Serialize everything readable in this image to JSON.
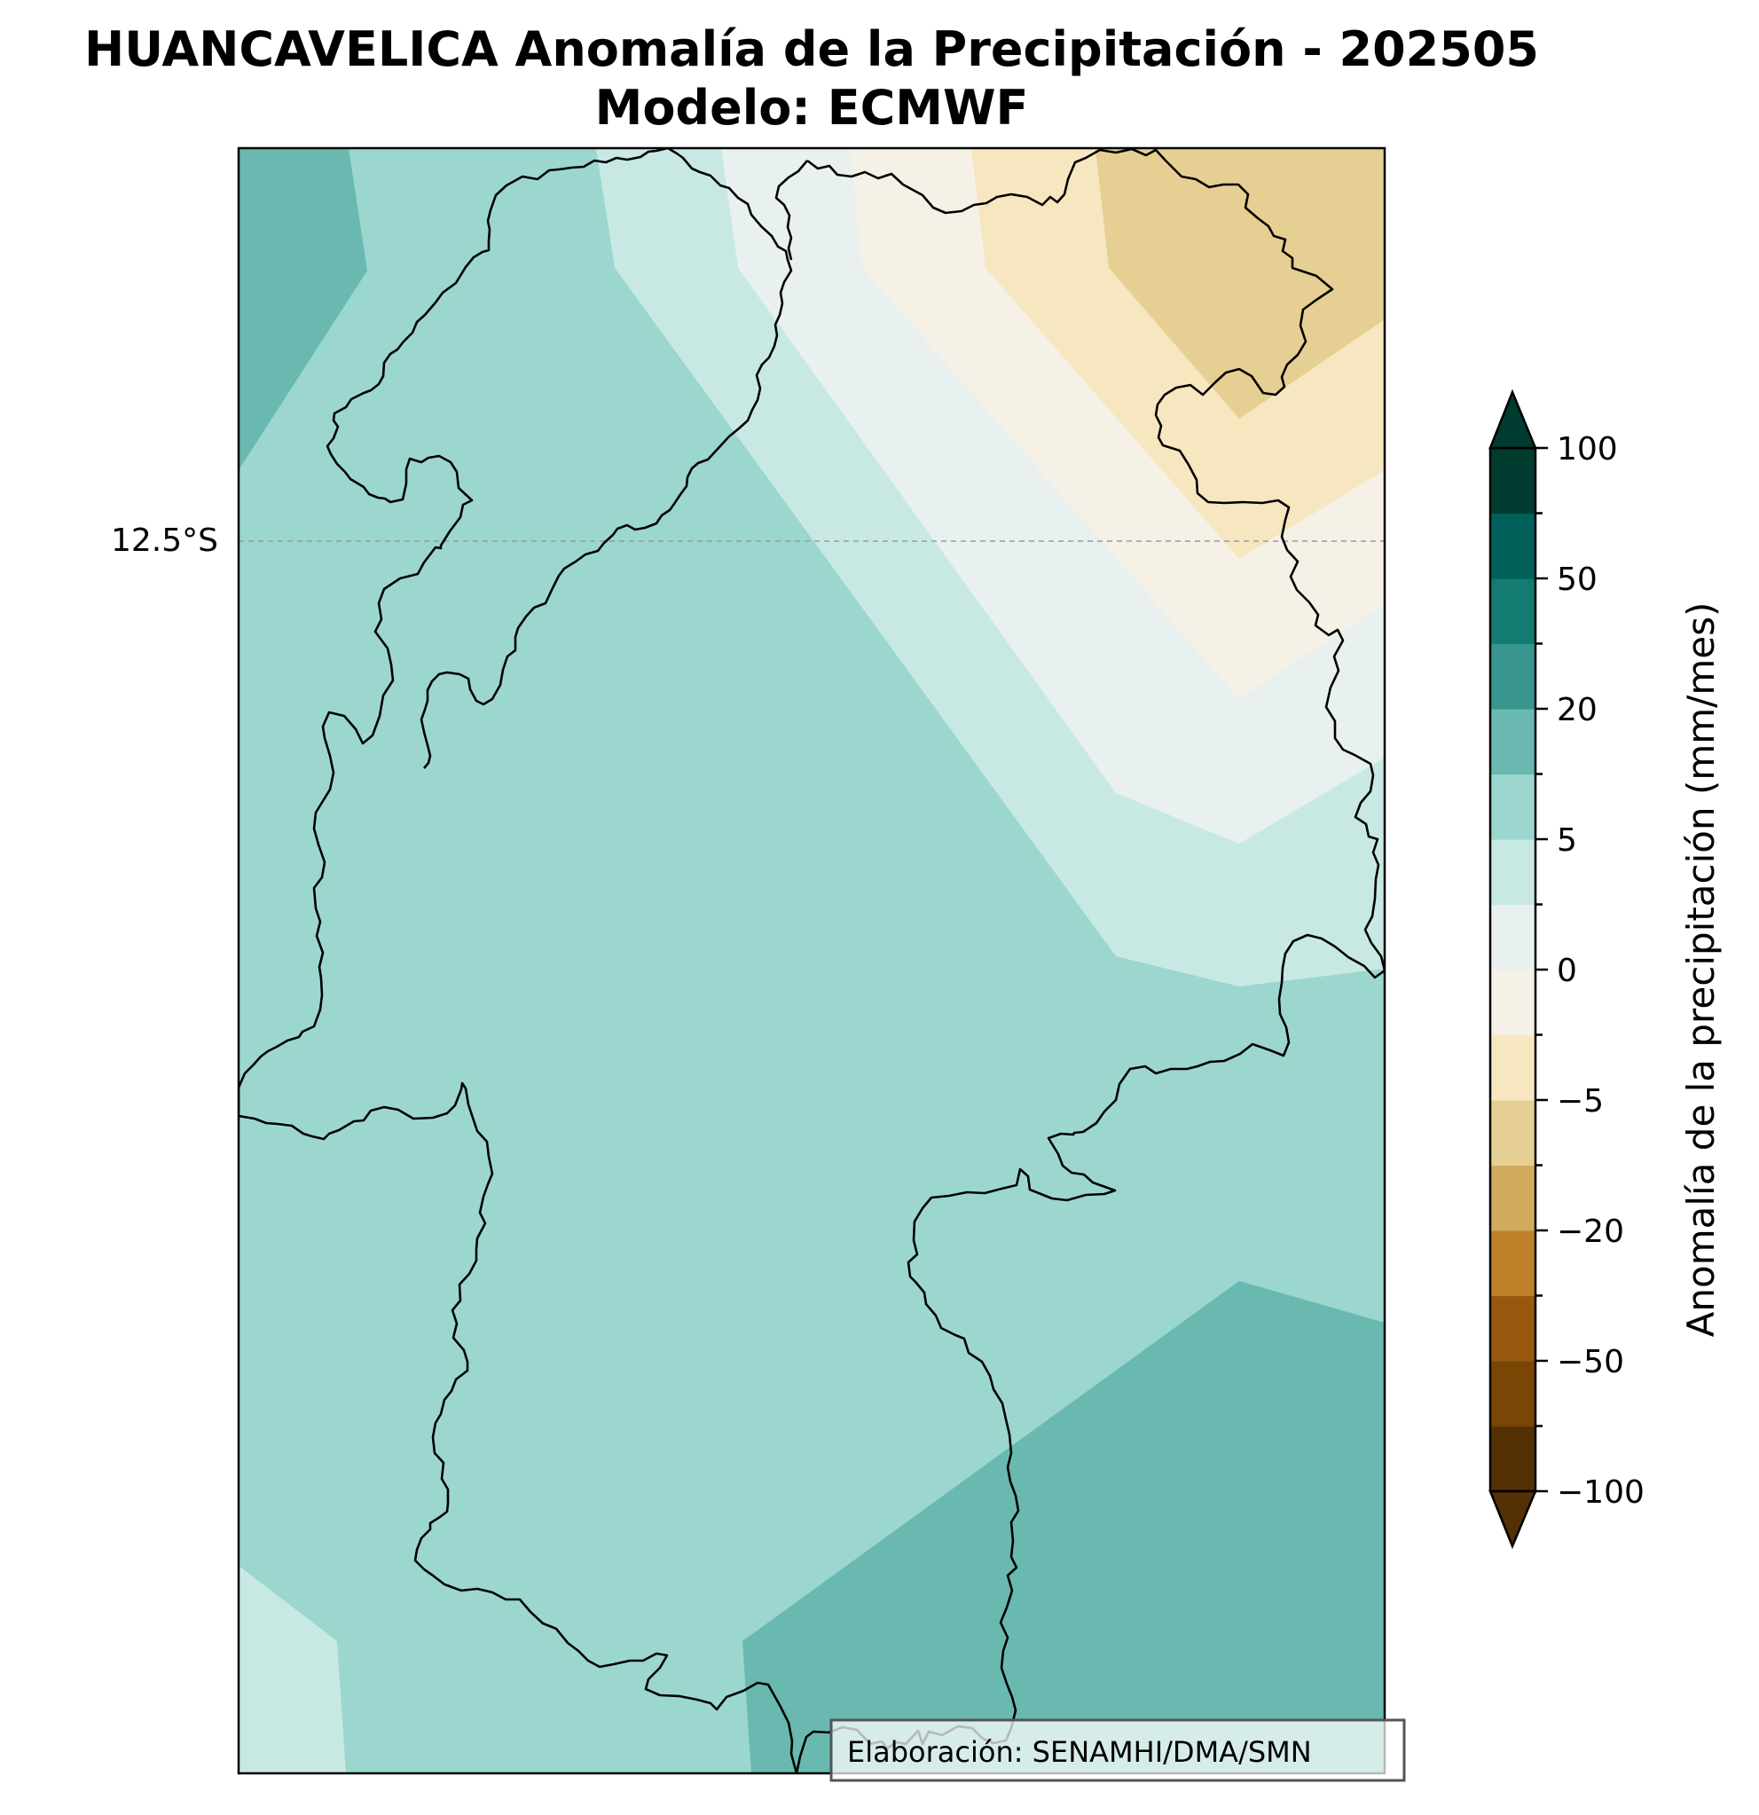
{
  "title": {
    "line1": "HUANCAVELICA Anomalía de la Precipitación - 202505",
    "line2": "Modelo: ECMWF"
  },
  "map": {
    "region": "HUANCAVELICA",
    "lat_gridline_label": "12.5°S",
    "credit": "Elaboración: SENAMHI/DMA/SMN"
  },
  "colorbar": {
    "label": "Anomalía de la precipitación (mm/mes)",
    "ticks": [
      "100",
      "50",
      "20",
      "5",
      "0",
      "−5",
      "−20",
      "−50",
      "−100"
    ],
    "levels": [
      -100,
      -75,
      -50,
      -30,
      -20,
      -10,
      -5,
      -2,
      0,
      2,
      5,
      10,
      20,
      30,
      50,
      75,
      100
    ],
    "colors_bottom_to_top": [
      "#543005",
      "#7a4606",
      "#98590e",
      "#bf822a",
      "#d3ab5f",
      "#e6cf92",
      "#f6e7c1",
      "#f5f1e6",
      "#e8f1ef",
      "#c8e9e3",
      "#9bd7cf",
      "#69b9b0",
      "#38968e",
      "#137b71",
      "#01605a",
      "#003c30"
    ],
    "extend_low_color": "#543005",
    "extend_high_color": "#003c30"
  },
  "colors": {
    "band_teal_dark": "#69b9b0",
    "band_teal": "#9bd7cf",
    "band_teal_light": "#c8e9e3",
    "band_neutral_green": "#e8f1ef",
    "band_neutral_tan": "#f5f1e6",
    "band_tan_light": "#f6e7c1",
    "band_tan": "#e6cf92",
    "boundary": "#000000"
  }
}
